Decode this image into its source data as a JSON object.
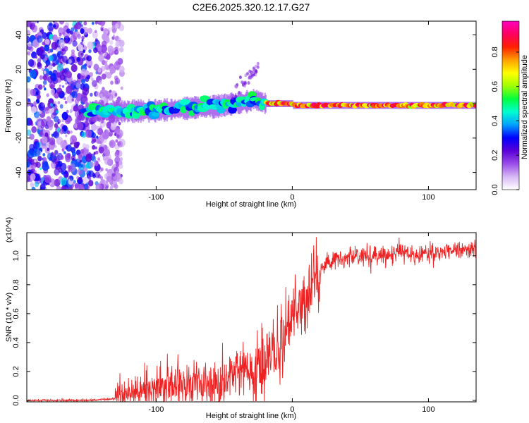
{
  "figure": {
    "title": "C2E6.2025.320.12.17.G27"
  },
  "chart_data": [
    {
      "type": "heatmap",
      "name": "spectrogram",
      "title": "C2E6.2025.320.12.17.G27",
      "xlabel": "Height of straight line (km)",
      "ylabel": "Frequency (Hz)",
      "xlim": [
        -195,
        135
      ],
      "ylim": [
        -50,
        48
      ],
      "xticks": [
        -100,
        0,
        100
      ],
      "xtick_labels": [
        "-100",
        "0",
        "100"
      ],
      "yticks": [
        -40,
        -20,
        0,
        20,
        40
      ],
      "ytick_labels": [
        "-40",
        "-20",
        "0",
        "20",
        "40"
      ],
      "colorbar": {
        "label": "Normalized spectral amplitude",
        "range": [
          0.0,
          0.98
        ],
        "ticks": [
          0.0,
          0.2,
          0.4,
          0.6,
          0.8
        ],
        "tick_labels": [
          "0.0",
          "0.2",
          "0.4",
          "0.6",
          "0.8"
        ],
        "colormap": [
          "#ffffff",
          "#d7b8f5",
          "#9b4ce8",
          "#5a00d8",
          "#0000ff",
          "#00a0ff",
          "#00ffd0",
          "#00ff40",
          "#a0ff00",
          "#ffff00",
          "#ffa000",
          "#ff2000",
          "#ff0060",
          "#ff00c0"
        ]
      },
      "features": {
        "signal_track_start_km": -152,
        "signal_frequency_hz": 0,
        "noise_region_km": [
          -195,
          -125
        ]
      }
    },
    {
      "type": "line",
      "name": "snr",
      "xlabel": "Height of straight line (km)",
      "ylabel": "SNR (10 * v/v)",
      "y_multiplier_label": "(x10^4)",
      "xlim": [
        -195,
        135
      ],
      "ylim": [
        -0.01,
        1.16
      ],
      "xticks": [
        -100,
        0,
        100
      ],
      "xtick_labels": [
        "-100",
        "0",
        "100"
      ],
      "yticks": [
        0.0,
        0.2,
        0.4,
        0.6,
        0.8,
        1.0
      ],
      "ytick_labels": [
        "0.0",
        "0.2",
        "0.4",
        "0.6",
        "0.8",
        "1.0"
      ],
      "color": "#ee2222",
      "trend": {
        "x": [
          -195,
          -150,
          -130,
          -120,
          -110,
          -100,
          -80,
          -60,
          -40,
          -30,
          -20,
          -15,
          -10,
          -5,
          0,
          5,
          10,
          15,
          20,
          25,
          30,
          40,
          50,
          60,
          70,
          80,
          90,
          100,
          110,
          120,
          135
        ],
        "y": [
          0.0,
          0.0,
          0.01,
          0.05,
          0.08,
          0.09,
          0.11,
          0.13,
          0.16,
          0.2,
          0.27,
          0.33,
          0.38,
          0.48,
          0.58,
          0.64,
          0.7,
          0.8,
          0.88,
          0.94,
          0.97,
          0.99,
          1.0,
          1.0,
          1.01,
          1.01,
          1.01,
          1.02,
          1.02,
          1.03,
          1.04
        ]
      }
    }
  ]
}
